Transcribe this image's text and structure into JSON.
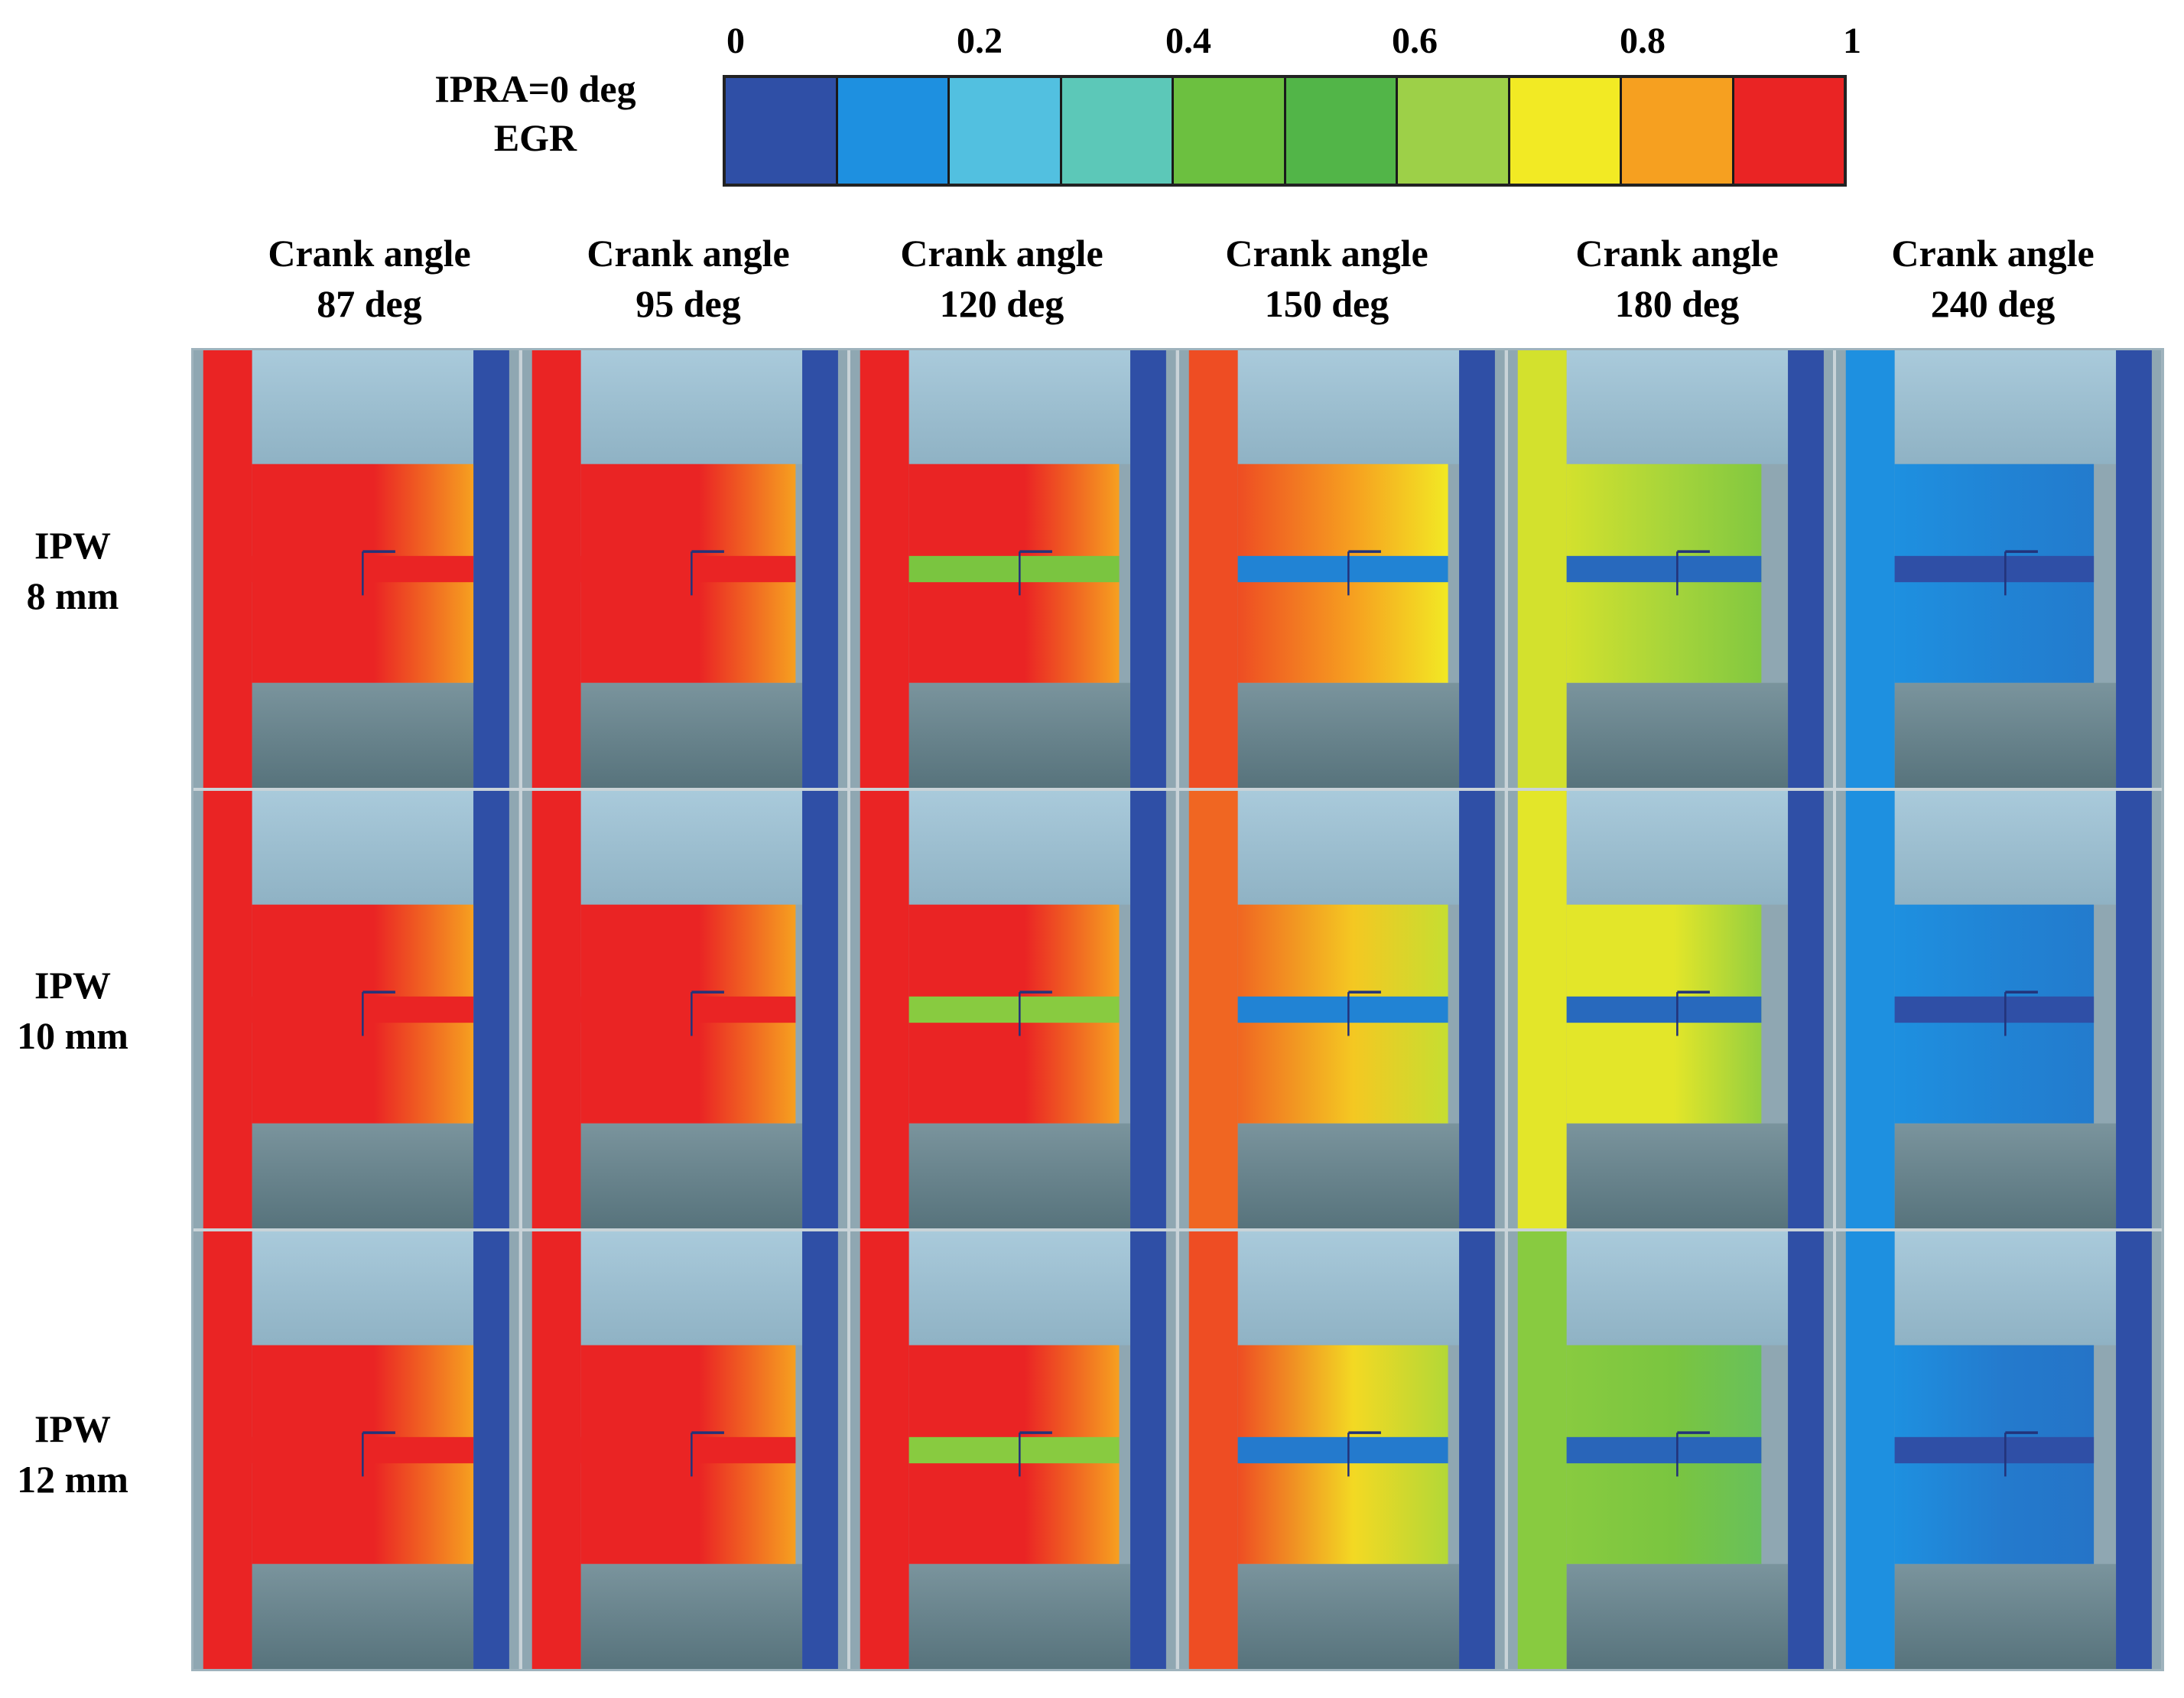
{
  "legend": {
    "title_line1": "IPRA=0 deg",
    "title_line2": "EGR",
    "ticks": [
      "0",
      "0.2",
      "0.4",
      "0.6",
      "0.8",
      "1"
    ],
    "range": [
      0,
      1
    ],
    "colors": [
      "#2f4fa6",
      "#1e90e0",
      "#52c0e0",
      "#5cc8b8",
      "#6cc040",
      "#52b548",
      "#9dd048",
      "#f2ea24",
      "#f6a020",
      "#ea2424"
    ]
  },
  "columns": [
    {
      "line1": "Crank angle",
      "line2": "87 deg"
    },
    {
      "line1": "Crank angle",
      "line2": "95 deg"
    },
    {
      "line1": "Crank angle",
      "line2": "120 deg"
    },
    {
      "line1": "Crank angle",
      "line2": "150 deg"
    },
    {
      "line1": "Crank angle",
      "line2": "180 deg"
    },
    {
      "line1": "Crank angle",
      "line2": "240 deg"
    }
  ],
  "rows": [
    {
      "line1": "IPW",
      "line2": "8 mm"
    },
    {
      "line1": "IPW",
      "line2": "10 mm"
    },
    {
      "line1": "IPW",
      "line2": "12 mm"
    }
  ],
  "palette": {
    "red": "#ea2424",
    "orange": "#f6a020",
    "yellow": "#f2ea24",
    "lime": "#b8dc30",
    "green": "#6cc040",
    "cyan": "#52c0e0",
    "blue": "#2f4fa6",
    "wall_top": "#9dc0d2",
    "wall_bottom": "#627f88",
    "wall_side": "#8fa7b2"
  },
  "egr_cells": [
    [
      {
        "left": 1.0,
        "core": 1.0,
        "chan": 1.0,
        "right": 0.0,
        "chamber_fill": 1.0
      },
      {
        "left": 1.0,
        "core": 1.0,
        "chan": 1.0,
        "right": 0.0,
        "chamber_fill": 0.97
      },
      {
        "left": 1.0,
        "core": 1.0,
        "chan": 0.5,
        "right": 0.0,
        "chamber_fill": 0.95
      },
      {
        "left": 0.95,
        "core": 0.85,
        "chan": 0.12,
        "right": 0.0,
        "chamber_fill": 0.95
      },
      {
        "left": 0.68,
        "core": 0.62,
        "chan": 0.06,
        "right": 0.0,
        "chamber_fill": 0.88
      },
      {
        "left": 0.15,
        "core": 0.12,
        "chan": 0.0,
        "right": 0.0,
        "chamber_fill": 0.9
      }
    ],
    [
      {
        "left": 1.0,
        "core": 1.0,
        "chan": 1.0,
        "right": 0.0,
        "chamber_fill": 1.0
      },
      {
        "left": 1.0,
        "core": 1.0,
        "chan": 1.0,
        "right": 0.0,
        "chamber_fill": 0.97
      },
      {
        "left": 1.0,
        "core": 1.0,
        "chan": 0.55,
        "right": 0.0,
        "chamber_fill": 0.95
      },
      {
        "left": 0.92,
        "core": 0.78,
        "chan": 0.12,
        "right": 0.0,
        "chamber_fill": 0.95
      },
      {
        "left": 0.7,
        "core": 0.7,
        "chan": 0.06,
        "right": 0.0,
        "chamber_fill": 0.88
      },
      {
        "left": 0.15,
        "core": 0.12,
        "chan": 0.0,
        "right": 0.0,
        "chamber_fill": 0.9
      }
    ],
    [
      {
        "left": 1.0,
        "core": 1.0,
        "chan": 1.0,
        "right": 0.0,
        "chamber_fill": 1.0
      },
      {
        "left": 1.0,
        "core": 1.0,
        "chan": 1.0,
        "right": 0.0,
        "chamber_fill": 0.97
      },
      {
        "left": 1.0,
        "core": 1.0,
        "chan": 0.55,
        "right": 0.0,
        "chamber_fill": 0.95
      },
      {
        "left": 0.95,
        "core": 0.75,
        "chan": 0.1,
        "right": 0.0,
        "chamber_fill": 0.95
      },
      {
        "left": 0.55,
        "core": 0.5,
        "chan": 0.05,
        "right": 0.0,
        "chamber_fill": 0.88
      },
      {
        "left": 0.15,
        "core": 0.1,
        "chan": 0.0,
        "right": 0.0,
        "chamber_fill": 0.9
      }
    ]
  ]
}
